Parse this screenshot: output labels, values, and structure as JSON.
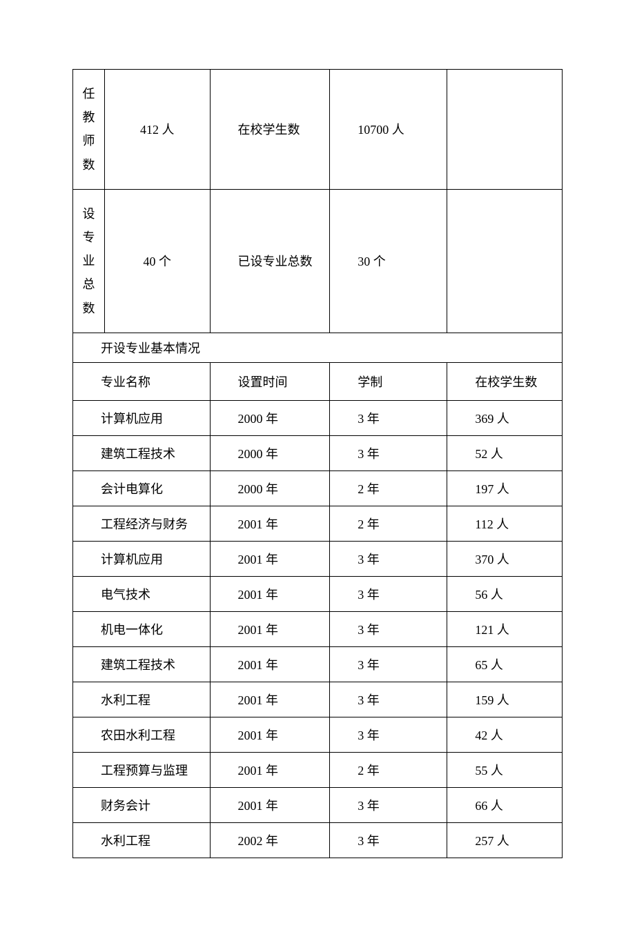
{
  "top": {
    "teacher_label": "任教师数",
    "teacher_value": "412 人",
    "student_label": "在校学生数",
    "student_value": "10700 人",
    "majors_total_label": "设专业总数",
    "majors_total_value": "40 个",
    "majors_set_label": "已设专业总数",
    "majors_set_value": "30 个"
  },
  "section_title": "开设专业基本情况",
  "headers": {
    "name": "专业名称",
    "time": "设置时间",
    "duration": "学制",
    "students": "在校学生数"
  },
  "rows": [
    {
      "name": "计算机应用",
      "time": "2000 年",
      "duration": "3 年",
      "students": "369 人"
    },
    {
      "name": "建筑工程技术",
      "time": "2000 年",
      "duration": "3 年",
      "students": "52 人"
    },
    {
      "name": "会计电算化",
      "time": "2000 年",
      "duration": "2 年",
      "students": "197 人"
    },
    {
      "name": "工程经济与财务",
      "time": "2001 年",
      "duration": "2 年",
      "students": "112 人"
    },
    {
      "name": "计算机应用",
      "time": "2001 年",
      "duration": "3 年",
      "students": "370 人"
    },
    {
      "name": "电气技术",
      "time": "2001 年",
      "duration": "3 年",
      "students": "56 人"
    },
    {
      "name": "机电一体化",
      "time": "2001 年",
      "duration": "3 年",
      "students": "121 人"
    },
    {
      "name": "建筑工程技术",
      "time": "2001 年",
      "duration": "3 年",
      "students": "65 人"
    },
    {
      "name": "水利工程",
      "time": "2001 年",
      "duration": "3 年",
      "students": "159 人"
    },
    {
      "name": "农田水利工程",
      "time": "2001 年",
      "duration": "3 年",
      "students": "42 人"
    },
    {
      "name": "工程预算与监理",
      "time": "2001 年",
      "duration": "2 年",
      "students": "55 人"
    },
    {
      "name": "财务会计",
      "time": "2001 年",
      "duration": "3 年",
      "students": "66 人"
    },
    {
      "name": "水利工程",
      "time": "2002 年",
      "duration": "3 年",
      "students": "257 人"
    }
  ]
}
